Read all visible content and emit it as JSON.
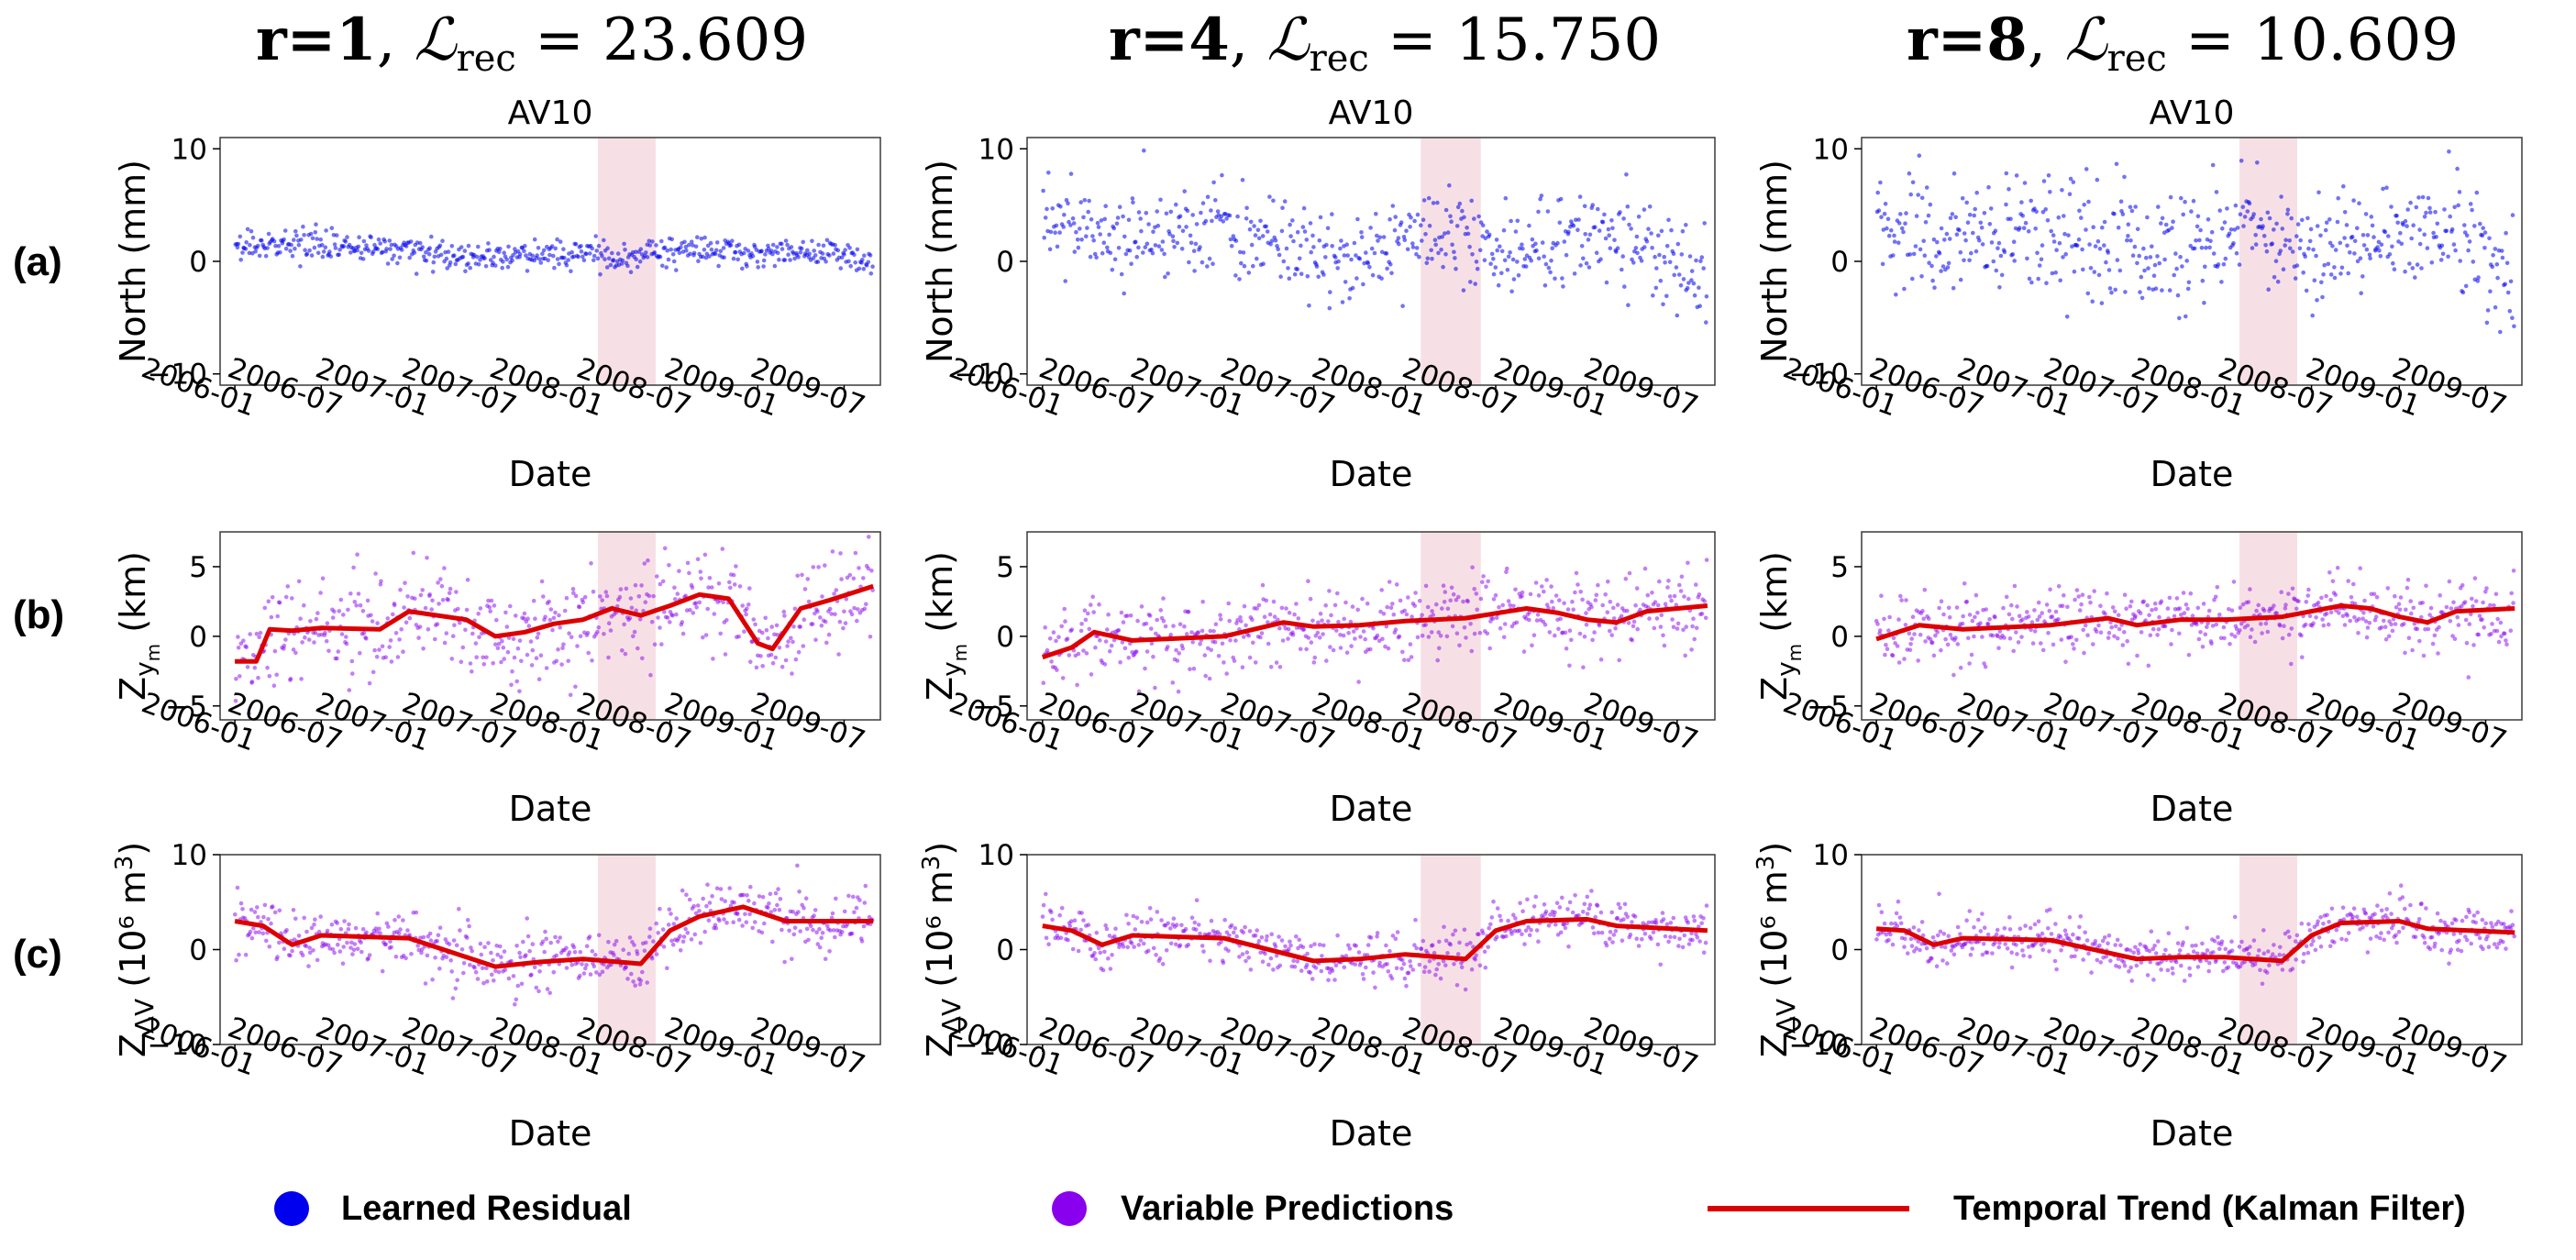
{
  "figure": {
    "column_titles": [
      {
        "r": "r=1",
        "loss_symbol": "ℒ",
        "loss_subscript": "rec",
        "loss_value": "= 23.609"
      },
      {
        "r": "r=4",
        "loss_symbol": "ℒ",
        "loss_subscript": "rec",
        "loss_value": "= 15.750"
      },
      {
        "r": "r=8",
        "loss_symbol": "ℒ",
        "loss_subscript": "rec",
        "loss_value": "= 10.609"
      }
    ],
    "row_labels": [
      "(a)",
      "(b)",
      "(c)"
    ],
    "legend": [
      {
        "label": "Learned Residual",
        "marker": "dot",
        "color": "#0000ee"
      },
      {
        "label": "Variable Predictions",
        "marker": "dot",
        "color": "#8800ee"
      },
      {
        "label": "Temporal Trend (Kalman Filter)",
        "marker": "line",
        "color": "#dd0000"
      }
    ]
  },
  "chart_data": [
    {
      "type": "scatter",
      "row": "a",
      "column": 1,
      "title": "AV10",
      "xlabel": "Date",
      "ylabel_main": "North (mm)",
      "ylabel_sub": "",
      "ylabel_tail": "",
      "ylabel_sup": "",
      "xlim": [
        "2005-12-01",
        "2009-09-15"
      ],
      "ylim": [
        -11,
        11
      ],
      "x_ticks": [
        "2006-01",
        "2006-07",
        "2007-01",
        "2007-07",
        "2008-01",
        "2008-07",
        "2009-01",
        "2009-07"
      ],
      "y_ticks": [
        -10,
        0,
        10
      ],
      "y_tick_labels": [
        "−10",
        "0",
        "10"
      ],
      "highlight": {
        "start": "2008-02-01",
        "end": "2008-06-01",
        "color": "#f7e0e5"
      },
      "point_color": "#0000ee",
      "point_opacity": 0.55,
      "scatter_spread": 0.6,
      "outlier_sd": 0.5,
      "series": [
        {
          "name": "Learned Residual",
          "style": "points",
          "dates": [
            "2006-01-01",
            "2006-07-01",
            "2007-01-01",
            "2007-04-01",
            "2007-07-01",
            "2008-01-01",
            "2008-03-15",
            "2008-07-01",
            "2009-01-01",
            "2009-07-01",
            "2009-08-31"
          ],
          "values": [
            1.5,
            1.3,
            1.0,
            0.5,
            0.3,
            0.8,
            0.2,
            1.0,
            0.8,
            0.7,
            -0.5
          ]
        }
      ]
    },
    {
      "type": "scatter",
      "row": "a",
      "column": 2,
      "title": "AV10",
      "xlabel": "Date",
      "ylabel_main": "North (mm)",
      "ylabel_sub": "",
      "ylabel_tail": "",
      "ylabel_sup": "",
      "xlim": [
        "2005-12-01",
        "2009-09-15"
      ],
      "ylim": [
        -11,
        11
      ],
      "x_ticks": [
        "2006-01",
        "2006-07",
        "2007-01",
        "2007-07",
        "2008-01",
        "2008-07",
        "2009-01",
        "2009-07"
      ],
      "y_ticks": [
        -10,
        0,
        10
      ],
      "y_tick_labels": [
        "−10",
        "0",
        "10"
      ],
      "highlight": {
        "start": "2008-02-01",
        "end": "2008-06-01",
        "color": "#f7e0e5"
      },
      "point_color": "#0000ee",
      "point_opacity": 0.55,
      "scatter_spread": 2.0,
      "outlier_sd": 2.0,
      "series": [
        {
          "name": "Learned Residual",
          "style": "points",
          "dates": [
            "2006-01-01",
            "2006-04-01",
            "2006-07-01",
            "2007-01-01",
            "2007-07-01",
            "2007-10-01",
            "2008-01-01",
            "2008-06-01",
            "2008-10-01",
            "2009-01-01",
            "2009-05-01",
            "2009-08-31"
          ],
          "values": [
            4.0,
            2.8,
            2.2,
            2.6,
            0.5,
            0.0,
            3.0,
            1.5,
            0.8,
            3.5,
            1.5,
            -2.0
          ]
        }
      ]
    },
    {
      "type": "scatter",
      "row": "a",
      "column": 3,
      "title": "AV10",
      "xlabel": "Date",
      "ylabel_main": "North (mm)",
      "ylabel_sub": "",
      "ylabel_tail": "",
      "ylabel_sup": "",
      "xlim": [
        "2005-12-01",
        "2009-09-15"
      ],
      "ylim": [
        -11,
        11
      ],
      "x_ticks": [
        "2006-01",
        "2006-07",
        "2007-01",
        "2007-07",
        "2008-01",
        "2008-07",
        "2009-01",
        "2009-07"
      ],
      "y_ticks": [
        -10,
        0,
        10
      ],
      "y_tick_labels": [
        "−10",
        "0",
        "10"
      ],
      "highlight": {
        "start": "2008-02-01",
        "end": "2008-06-01",
        "color": "#f7e0e5"
      },
      "point_color": "#0000ee",
      "point_opacity": 0.55,
      "scatter_spread": 2.4,
      "outlier_sd": 2.4,
      "series": [
        {
          "name": "Learned Residual",
          "style": "points",
          "dates": [
            "2006-01-01",
            "2006-05-01",
            "2006-09-01",
            "2007-01-01",
            "2007-07-01",
            "2007-10-01",
            "2008-02-01",
            "2008-07-01",
            "2009-01-01",
            "2009-05-01",
            "2009-08-31"
          ],
          "values": [
            3.5,
            1.5,
            2.5,
            2.8,
            0.5,
            1.0,
            2.8,
            1.0,
            2.5,
            3.0,
            -2.0
          ]
        }
      ]
    },
    {
      "type": "scatter",
      "row": "b",
      "column": 1,
      "title": "",
      "xlabel": "Date",
      "ylabel_main": "Z",
      "ylabel_sub": "y",
      "ylabel_subsub": "m",
      "ylabel_tail": " (km)",
      "ylabel_sup": "",
      "xlim": [
        "2005-12-01",
        "2009-09-15"
      ],
      "ylim": [
        -6,
        7.5
      ],
      "x_ticks": [
        "2006-01",
        "2006-07",
        "2007-01",
        "2007-07",
        "2008-01",
        "2008-07",
        "2009-01",
        "2009-07"
      ],
      "y_ticks": [
        -5,
        0,
        5
      ],
      "y_tick_labels": [
        "−5",
        "0",
        "5"
      ],
      "highlight": {
        "start": "2008-02-01",
        "end": "2008-06-01",
        "color": "#f7e0e5"
      },
      "point_color": "#8800ee",
      "point_opacity": 0.5,
      "scatter_spread": 1.8,
      "outlier_sd": 1.8,
      "series": [
        {
          "name": "Temporal Trend (Kalman Filter)",
          "style": "line",
          "color": "#dd0000",
          "dates": [
            "2006-01-01",
            "2006-02-15",
            "2006-03-15",
            "2006-05-01",
            "2006-07-01",
            "2006-11-01",
            "2007-01-01",
            "2007-05-01",
            "2007-07-01",
            "2007-09-01",
            "2007-11-01",
            "2008-01-01",
            "2008-03-01",
            "2008-05-01",
            "2008-07-01",
            "2008-09-01",
            "2008-11-01",
            "2009-01-01",
            "2009-02-01",
            "2009-04-01",
            "2009-06-01",
            "2009-08-31"
          ],
          "values": [
            -1.8,
            -1.8,
            0.5,
            0.4,
            0.6,
            0.5,
            1.8,
            1.2,
            0.0,
            0.3,
            0.9,
            1.2,
            2.0,
            1.5,
            2.2,
            3.0,
            2.7,
            -0.5,
            -0.9,
            2.0,
            2.6,
            3.6
          ]
        }
      ]
    },
    {
      "type": "scatter",
      "row": "b",
      "column": 2,
      "title": "",
      "xlabel": "Date",
      "ylabel_main": "Z",
      "ylabel_sub": "y",
      "ylabel_subsub": "m",
      "ylabel_tail": " (km)",
      "ylabel_sup": "",
      "xlim": [
        "2005-12-01",
        "2009-09-15"
      ],
      "ylim": [
        -6,
        7.5
      ],
      "x_ticks": [
        "2006-01",
        "2006-07",
        "2007-01",
        "2007-07",
        "2008-01",
        "2008-07",
        "2009-01",
        "2009-07"
      ],
      "y_ticks": [
        -5,
        0,
        5
      ],
      "y_tick_labels": [
        "−5",
        "0",
        "5"
      ],
      "highlight": {
        "start": "2008-02-01",
        "end": "2008-06-01",
        "color": "#f7e0e5"
      },
      "point_color": "#8800ee",
      "point_opacity": 0.5,
      "scatter_spread": 1.4,
      "outlier_sd": 1.4,
      "series": [
        {
          "name": "Temporal Trend (Kalman Filter)",
          "style": "line",
          "color": "#dd0000",
          "dates": [
            "2006-01-01",
            "2006-03-01",
            "2006-04-15",
            "2006-07-01",
            "2007-01-01",
            "2007-05-01",
            "2007-07-01",
            "2007-10-01",
            "2008-01-01",
            "2008-05-01",
            "2008-09-01",
            "2008-11-01",
            "2009-01-01",
            "2009-03-01",
            "2009-05-01",
            "2009-08-31"
          ],
          "values": [
            -1.5,
            -0.8,
            0.3,
            -0.3,
            0.0,
            1.0,
            0.7,
            0.8,
            1.1,
            1.3,
            2.0,
            1.7,
            1.2,
            1.0,
            1.8,
            2.2
          ]
        }
      ]
    },
    {
      "type": "scatter",
      "row": "b",
      "column": 3,
      "title": "",
      "xlabel": "Date",
      "ylabel_main": "Z",
      "ylabel_sub": "y",
      "ylabel_subsub": "m",
      "ylabel_tail": " (km)",
      "ylabel_sup": "",
      "xlim": [
        "2005-12-01",
        "2009-09-15"
      ],
      "ylim": [
        -6,
        7.5
      ],
      "x_ticks": [
        "2006-01",
        "2006-07",
        "2007-01",
        "2007-07",
        "2008-01",
        "2008-07",
        "2009-01",
        "2009-07"
      ],
      "y_ticks": [
        -5,
        0,
        5
      ],
      "y_tick_labels": [
        "−5",
        "0",
        "5"
      ],
      "highlight": {
        "start": "2008-02-01",
        "end": "2008-06-01",
        "color": "#f7e0e5"
      },
      "point_color": "#8800ee",
      "point_opacity": 0.5,
      "scatter_spread": 1.2,
      "outlier_sd": 1.2,
      "series": [
        {
          "name": "Temporal Trend (Kalman Filter)",
          "style": "line",
          "color": "#dd0000",
          "dates": [
            "2006-01-01",
            "2006-04-01",
            "2006-07-01",
            "2007-01-01",
            "2007-05-01",
            "2007-07-01",
            "2007-10-01",
            "2008-01-01",
            "2008-05-01",
            "2008-09-01",
            "2008-11-01",
            "2009-01-01",
            "2009-03-01",
            "2009-05-01",
            "2009-08-31"
          ],
          "values": [
            -0.2,
            0.8,
            0.5,
            0.8,
            1.3,
            0.8,
            1.2,
            1.2,
            1.4,
            2.2,
            2.0,
            1.4,
            1.0,
            1.8,
            2.0
          ]
        }
      ]
    },
    {
      "type": "scatter",
      "row": "c",
      "column": 1,
      "title": "",
      "xlabel": "Date",
      "ylabel_main": "Z",
      "ylabel_sub": "ΔV",
      "ylabel_subsub": "",
      "ylabel_tail": " (10⁶ m",
      "ylabel_sup": "3",
      "ylabel_close": ")",
      "xlim": [
        "2005-12-01",
        "2009-09-15"
      ],
      "ylim": [
        -10,
        10
      ],
      "x_ticks": [
        "2006-01",
        "2006-07",
        "2007-01",
        "2007-07",
        "2008-01",
        "2008-07",
        "2009-01",
        "2009-07"
      ],
      "y_ticks": [
        -10,
        0,
        10
      ],
      "y_tick_labels": [
        "−10",
        "0",
        "10"
      ],
      "highlight": {
        "start": "2008-02-01",
        "end": "2008-06-01",
        "color": "#f7e0e5"
      },
      "point_color": "#8800ee",
      "point_opacity": 0.5,
      "scatter_spread": 1.6,
      "outlier_sd": 1.6,
      "series": [
        {
          "name": "Temporal Trend (Kalman Filter)",
          "style": "line",
          "color": "#dd0000",
          "dates": [
            "2006-01-01",
            "2006-03-01",
            "2006-05-01",
            "2006-07-01",
            "2007-01-01",
            "2007-07-01",
            "2007-10-01",
            "2008-01-01",
            "2008-05-01",
            "2008-07-01",
            "2008-09-01",
            "2008-12-01",
            "2009-03-01",
            "2009-08-31"
          ],
          "values": [
            3.0,
            2.5,
            0.5,
            1.5,
            1.2,
            -1.8,
            -1.3,
            -1.0,
            -1.5,
            2.0,
            3.5,
            4.5,
            3.0,
            3.0
          ]
        }
      ]
    },
    {
      "type": "scatter",
      "row": "c",
      "column": 2,
      "title": "",
      "xlabel": "Date",
      "ylabel_main": "Z",
      "ylabel_sub": "ΔV",
      "ylabel_subsub": "",
      "ylabel_tail": " (10⁶ m",
      "ylabel_sup": "3",
      "ylabel_close": ")",
      "xlim": [
        "2005-12-01",
        "2009-09-15"
      ],
      "ylim": [
        -10,
        10
      ],
      "x_ticks": [
        "2006-01",
        "2006-07",
        "2007-01",
        "2007-07",
        "2008-01",
        "2008-07",
        "2009-01",
        "2009-07"
      ],
      "y_ticks": [
        -10,
        0,
        10
      ],
      "y_tick_labels": [
        "−10",
        "0",
        "10"
      ],
      "highlight": {
        "start": "2008-02-01",
        "end": "2008-06-01",
        "color": "#f7e0e5"
      },
      "point_color": "#8800ee",
      "point_opacity": 0.5,
      "scatter_spread": 1.3,
      "outlier_sd": 1.3,
      "series": [
        {
          "name": "Temporal Trend (Kalman Filter)",
          "style": "line",
          "color": "#dd0000",
          "dates": [
            "2006-01-01",
            "2006-03-01",
            "2006-05-01",
            "2006-07-01",
            "2007-01-01",
            "2007-07-01",
            "2007-10-01",
            "2008-01-01",
            "2008-05-01",
            "2008-07-01",
            "2008-09-01",
            "2009-01-01",
            "2009-03-01",
            "2009-08-31"
          ],
          "values": [
            2.5,
            2.0,
            0.5,
            1.5,
            1.2,
            -1.2,
            -1.0,
            -0.5,
            -1.0,
            2.0,
            3.0,
            3.2,
            2.5,
            2.0
          ]
        }
      ]
    },
    {
      "type": "scatter",
      "row": "c",
      "column": 3,
      "title": "",
      "xlabel": "Date",
      "ylabel_main": "Z",
      "ylabel_sub": "ΔV",
      "ylabel_subsub": "",
      "ylabel_tail": " (10⁶ m",
      "ylabel_sup": "3",
      "ylabel_close": ")",
      "xlim": [
        "2005-12-01",
        "2009-09-15"
      ],
      "ylim": [
        -10,
        10
      ],
      "x_ticks": [
        "2006-01",
        "2006-07",
        "2007-01",
        "2007-07",
        "2008-01",
        "2008-07",
        "2009-01",
        "2009-07"
      ],
      "y_ticks": [
        -10,
        0,
        10
      ],
      "y_tick_labels": [
        "−10",
        "0",
        "10"
      ],
      "highlight": {
        "start": "2008-02-01",
        "end": "2008-06-01",
        "color": "#f7e0e5"
      },
      "point_color": "#8800ee",
      "point_opacity": 0.5,
      "scatter_spread": 1.2,
      "outlier_sd": 1.2,
      "series": [
        {
          "name": "Temporal Trend (Kalman Filter)",
          "style": "line",
          "color": "#dd0000",
          "dates": [
            "2006-01-01",
            "2006-03-01",
            "2006-05-01",
            "2006-07-01",
            "2007-01-01",
            "2007-07-01",
            "2007-10-01",
            "2008-01-01",
            "2008-05-01",
            "2008-07-01",
            "2008-09-01",
            "2009-01-01",
            "2009-03-01",
            "2009-08-31"
          ],
          "values": [
            2.2,
            2.0,
            0.5,
            1.2,
            1.0,
            -1.0,
            -0.8,
            -0.8,
            -1.2,
            1.5,
            2.8,
            3.0,
            2.2,
            1.8
          ]
        }
      ]
    }
  ]
}
